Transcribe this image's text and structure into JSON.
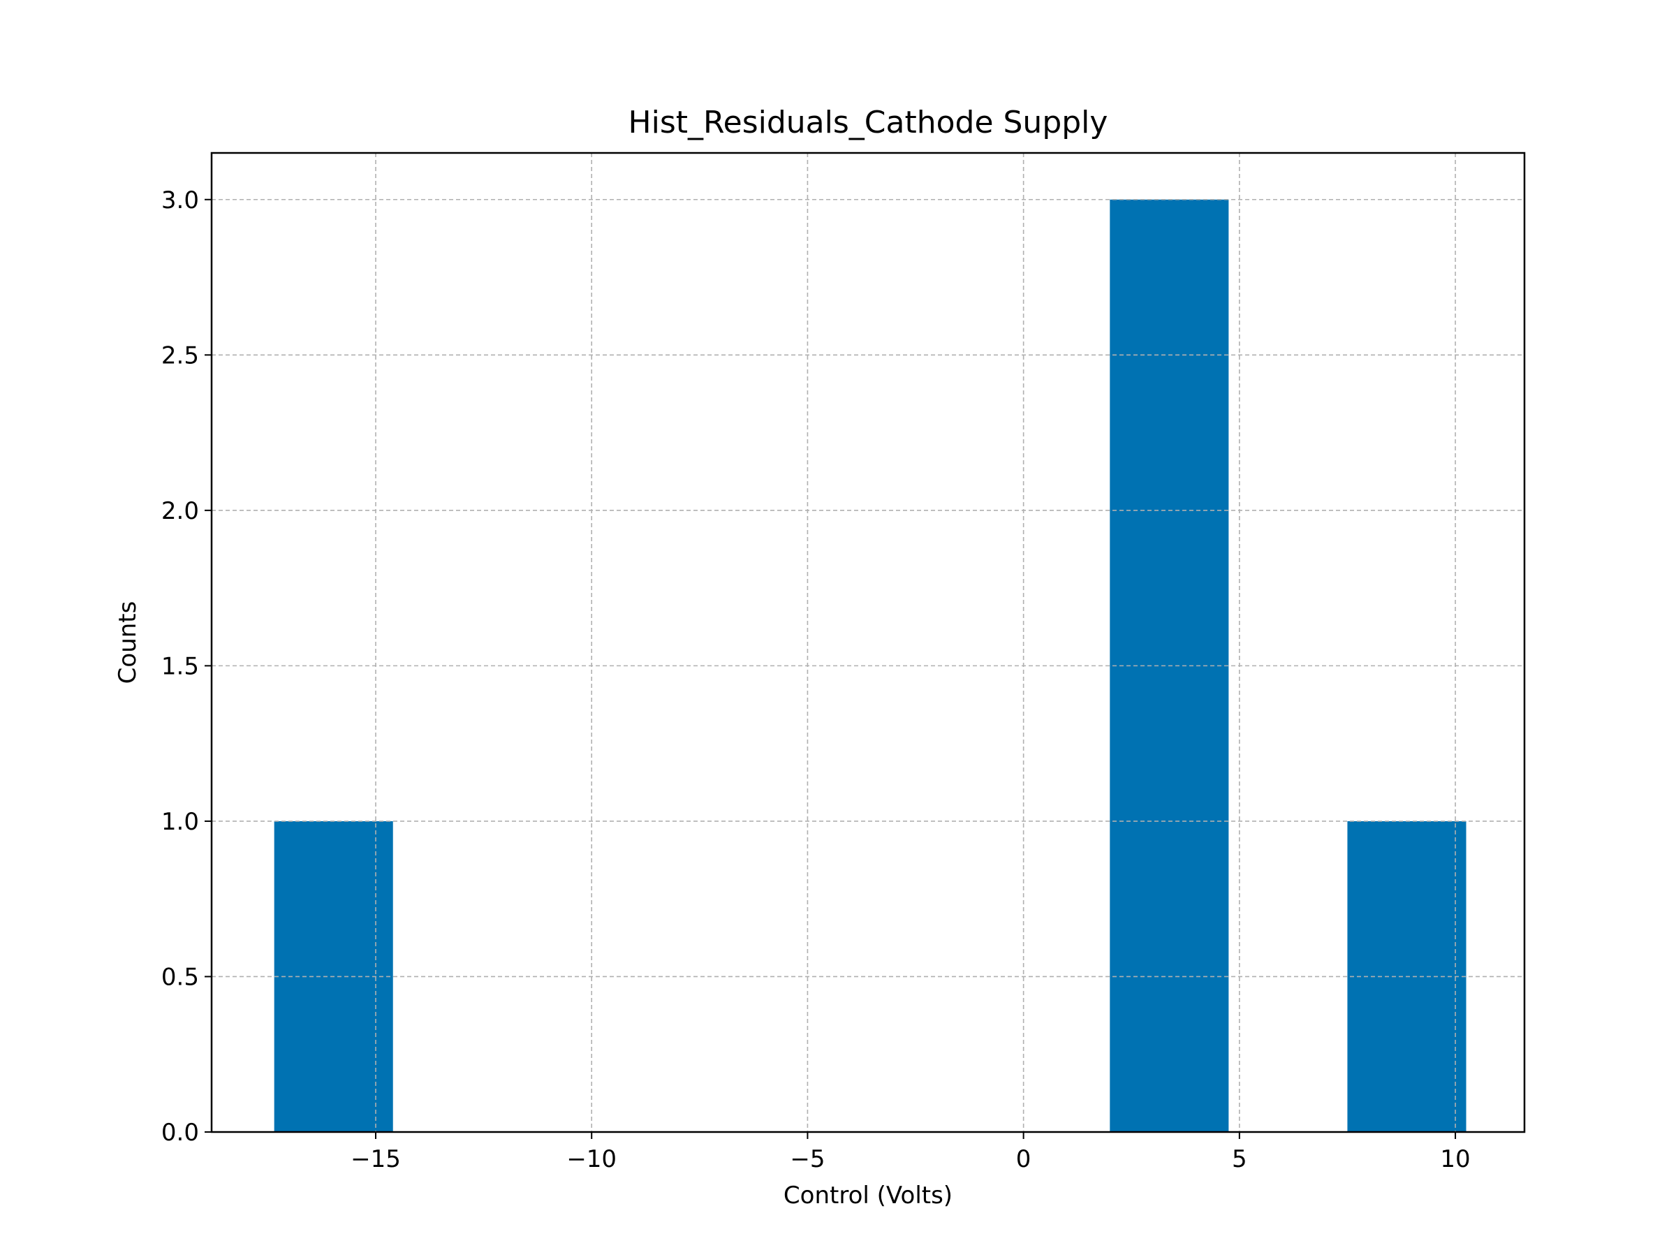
{
  "chart_data": {
    "type": "bar",
    "title": "Hist_Residuals_Cathode Supply",
    "xlabel": "Control (Volts)",
    "ylabel": "Counts",
    "xlim": [
      -18.8,
      11.6
    ],
    "ylim": [
      0,
      3.15
    ],
    "x_ticks": [
      -15,
      -10,
      -5,
      0,
      5,
      10
    ],
    "x_tick_labels": [
      "−15",
      "−10",
      "−5",
      "0",
      "5",
      "10"
    ],
    "y_ticks": [
      0,
      0.5,
      1,
      1.5,
      2,
      2.5,
      3
    ],
    "y_tick_labels": [
      "0.0",
      "0.5",
      "1.0",
      "1.5",
      "2.0",
      "2.5",
      "3.0"
    ],
    "bins": [
      {
        "x0": -17.35,
        "x1": -14.6,
        "count": 1
      },
      {
        "x0": 2.0,
        "x1": 4.75,
        "count": 3
      },
      {
        "x0": 7.5,
        "x1": 10.25,
        "count": 1
      }
    ],
    "bar_color": "#0072b2",
    "grid": true,
    "grid_color": "#b0b0b0"
  }
}
